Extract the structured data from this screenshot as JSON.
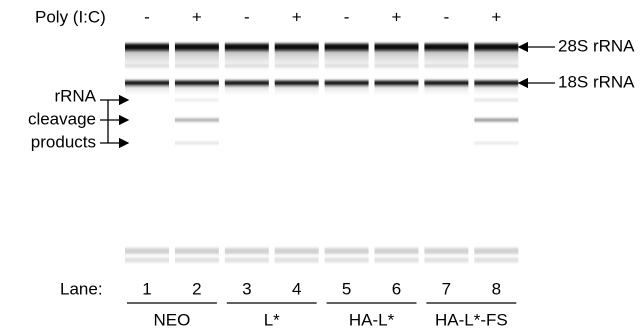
{
  "header": {
    "label": "Poly (I:C)"
  },
  "lanes": [
    {
      "poly": "-",
      "number": 1
    },
    {
      "poly": "+",
      "number": 2
    },
    {
      "poly": "-",
      "number": 3
    },
    {
      "poly": "+",
      "number": 4
    },
    {
      "poly": "-",
      "number": 5
    },
    {
      "poly": "+",
      "number": 6
    },
    {
      "poly": "-",
      "number": 7
    },
    {
      "poly": "+",
      "number": 8
    }
  ],
  "groups": [
    "NEO",
    "L*",
    "HA-L*",
    "HA-L*-FS"
  ],
  "band_labels": [
    "28S rRNA",
    "18S rRNA"
  ],
  "cleavage_label": [
    "rRNA",
    "cleavage",
    "products"
  ],
  "lane_label": "Lane:"
}
